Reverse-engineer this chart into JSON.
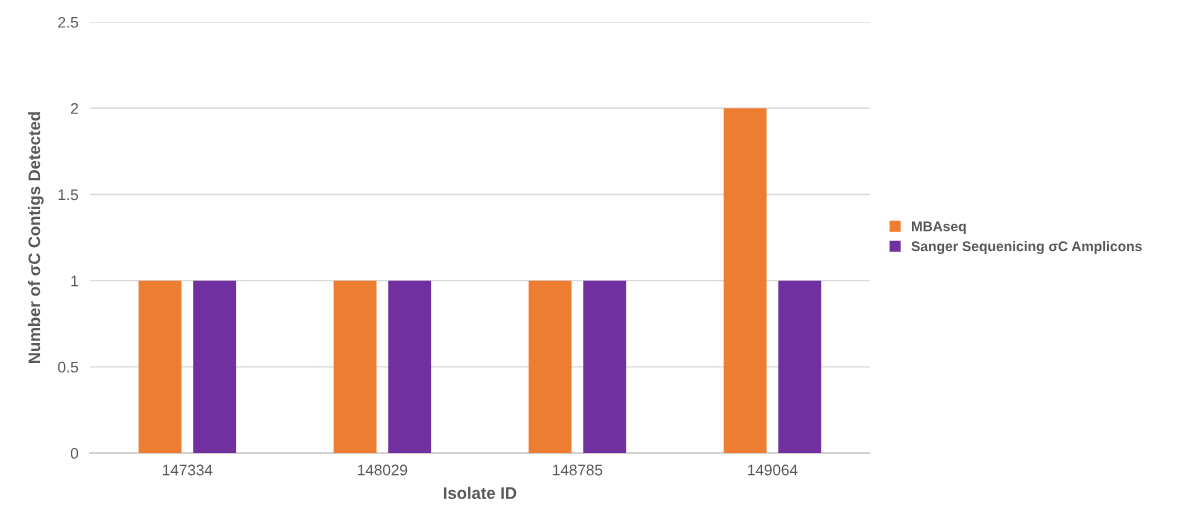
{
  "chart_data": {
    "type": "bar",
    "xlabel": "Isolate ID",
    "ylabel": "Number of σC Contigs Detected",
    "categories": [
      "147334",
      "148029",
      "148785",
      "149064"
    ],
    "series": [
      {
        "name": "MBAseq",
        "color": "#ed7d31",
        "values": [
          1,
          1,
          1,
          2
        ]
      },
      {
        "name": "Sanger Sequenicing σC Amplicons",
        "color": "#7030a0",
        "values": [
          1,
          1,
          1,
          1
        ]
      }
    ],
    "ylim": [
      0,
      2.5
    ],
    "yticks": [
      0,
      0.5,
      1,
      1.5,
      2,
      2.5
    ],
    "grid": "y",
    "legend": "right"
  }
}
